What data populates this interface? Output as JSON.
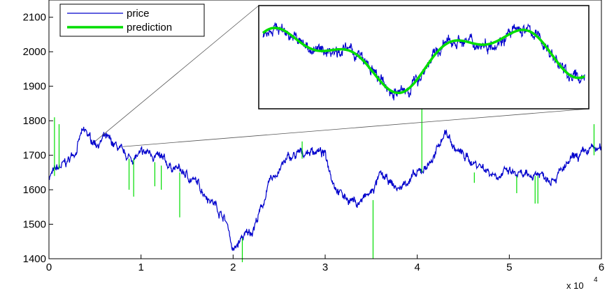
{
  "chart_data": {
    "type": "line",
    "title": "",
    "xlabel": "",
    "ylabel": "",
    "xlim": [
      0,
      60000
    ],
    "ylim": [
      1400,
      2150
    ],
    "x_tick_labels": [
      "0",
      "1",
      "2",
      "3",
      "4",
      "5",
      "6"
    ],
    "y_tick_labels": [
      "1400",
      "1500",
      "1600",
      "1700",
      "1800",
      "1900",
      "2000",
      "2100"
    ],
    "x_multiplier": {
      "base": "x 10",
      "exponent": "4"
    },
    "legend": {
      "placement": "top-left",
      "entries": [
        "price",
        "prediction"
      ]
    },
    "colors": {
      "price": "#0000cc",
      "prediction": "#00dd00"
    },
    "grid": false,
    "series": [
      {
        "name": "price",
        "x": [
          0,
          1000,
          2000,
          3000,
          3500,
          4000,
          4500,
          5000,
          5500,
          6000,
          6500,
          7000,
          7500,
          8000,
          9000,
          10000,
          11000,
          12000,
          13000,
          14000,
          15000,
          16000,
          17000,
          18000,
          19000,
          19500,
          20000,
          20500,
          21000,
          22000,
          23000,
          24000,
          25000,
          26000,
          27000,
          28000,
          29000,
          30000,
          31000,
          32000,
          33000,
          33500,
          34000,
          35000,
          36000,
          37000,
          38000,
          39000,
          40000,
          41000,
          42000,
          42500,
          43000,
          43500,
          44000,
          45000,
          46000,
          47000,
          48000,
          49000,
          50000,
          51000,
          52000,
          53000,
          54000,
          55000,
          56000,
          57000,
          58000,
          59000,
          60000
        ],
        "values": [
          1640,
          1660,
          1680,
          1720,
          1760,
          1765,
          1745,
          1740,
          1735,
          1750,
          1740,
          1730,
          1720,
          1700,
          1690,
          1700,
          1710,
          1690,
          1670,
          1660,
          1640,
          1620,
          1590,
          1560,
          1520,
          1490,
          1420,
          1440,
          1460,
          1480,
          1540,
          1620,
          1660,
          1690,
          1700,
          1710,
          1715,
          1700,
          1620,
          1580,
          1570,
          1560,
          1570,
          1590,
          1640,
          1620,
          1600,
          1630,
          1640,
          1670,
          1700,
          1740,
          1770,
          1750,
          1720,
          1700,
          1680,
          1670,
          1650,
          1645,
          1650,
          1640,
          1635,
          1650,
          1640,
          1640,
          1660,
          1690,
          1700,
          1720,
          1715
        ]
      },
      {
        "name": "prediction",
        "x": [
          0,
          1000,
          2000,
          3000,
          4000,
          5000,
          6000,
          7000,
          8000,
          9000,
          10000,
          11000,
          12000,
          13000,
          14000,
          15000,
          16000,
          17000,
          18000,
          19000,
          20000,
          21000,
          22000,
          23000,
          24000,
          25000,
          26000,
          27000,
          28000,
          29000,
          30000,
          31000,
          32000,
          33000,
          34000,
          35000,
          36000,
          37000,
          38000,
          39000,
          40000,
          41000,
          42000,
          43000,
          44000,
          45000,
          46000,
          47000,
          48000,
          49000,
          50000,
          51000,
          52000,
          53000,
          54000,
          55000,
          56000,
          57000,
          58000,
          59000,
          60000
        ],
        "values": [
          1638,
          1655,
          1678,
          1715,
          1752,
          1745,
          1738,
          1735,
          1715,
          1698,
          1700,
          1705,
          1692,
          1672,
          1660,
          1640,
          1618,
          1590,
          1560,
          1520,
          1430,
          1450,
          1478,
          1540,
          1618,
          1660,
          1690,
          1705,
          1712,
          1700,
          1620,
          1582,
          1568,
          1570,
          1592,
          1638,
          1620,
          1602,
          1630,
          1640,
          1668,
          1700,
          1760,
          1748,
          1718,
          1700,
          1680,
          1668,
          1650,
          1648,
          1650,
          1640,
          1638,
          1648,
          1640,
          1642,
          1660,
          1688,
          1700,
          1718,
          1715
        ]
      }
    ],
    "inset": {
      "x_range": [
        5000,
        8000
      ],
      "y_range": [
        1700,
        1800
      ]
    }
  }
}
